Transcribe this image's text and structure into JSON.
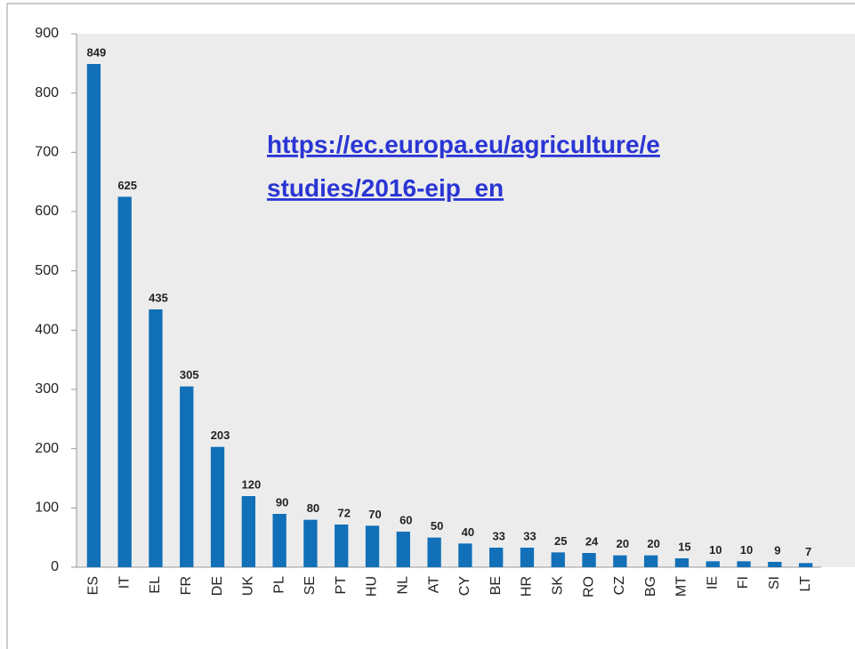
{
  "chart_data": {
    "type": "bar",
    "categories": [
      "ES",
      "IT",
      "EL",
      "FR",
      "DE",
      "UK",
      "PL",
      "SE",
      "PT",
      "HU",
      "NL",
      "AT",
      "CY",
      "BE",
      "HR",
      "SK",
      "RO",
      "CZ",
      "BG",
      "MT",
      "IE",
      "FI",
      "SI",
      "LT"
    ],
    "values": [
      849,
      625,
      435,
      305,
      203,
      120,
      90,
      80,
      72,
      70,
      60,
      50,
      40,
      33,
      33,
      25,
      24,
      20,
      20,
      15,
      10,
      10,
      9,
      7
    ],
    "color": "#1170b8",
    "ylim": [
      0,
      900
    ],
    "yticks": [
      0,
      100,
      200,
      300,
      400,
      500,
      600,
      700,
      800,
      900
    ],
    "annotations": [
      "https://ec.europa.eu/agriculture/e",
      "studies/2016-eip_en"
    ]
  }
}
